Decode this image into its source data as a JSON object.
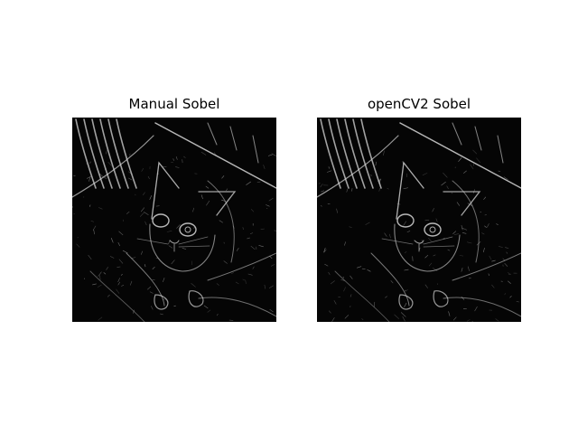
{
  "figure": {
    "panels": [
      {
        "title": "Manual Sobel",
        "image": "sobel-edge-map-cat"
      },
      {
        "title": "openCV2 Sobel",
        "image": "sobel-edge-map-cat"
      }
    ],
    "colors": {
      "background": "#ffffff",
      "edge_map_background": "#050505",
      "edge_stroke": "#d8d8d8"
    }
  }
}
